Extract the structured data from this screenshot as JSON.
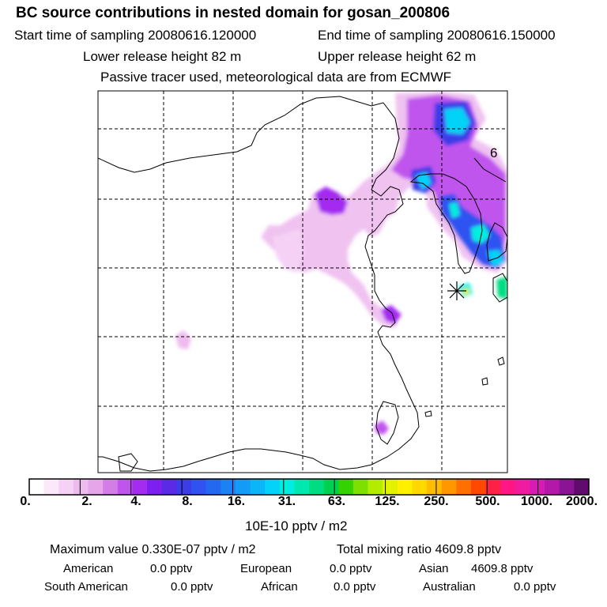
{
  "header": {
    "title": "BC  source contributions in nested domain for gosan_200806",
    "start_label": "Start time of sampling 20080616.120000",
    "end_label": "End time of sampling 20080616.150000",
    "lower_label": "Lower release height   82 m",
    "upper_label": "Upper release height   62 m",
    "tracer_note": "Passive tracer used, meteorological data are from ECMWF"
  },
  "map": {
    "label_6": "6",
    "receptor_name": "gosan"
  },
  "colorbar": {
    "colors": [
      "#ffffff",
      "#fbe8fb",
      "#f5d2f5",
      "#eebbee",
      "#e5a5e8",
      "#d47de6",
      "#c055ee",
      "#a42cf0",
      "#7d1ff0",
      "#5a2ae6",
      "#3c3ce8",
      "#2f52f0",
      "#2468f2",
      "#1a82f5",
      "#129cf7",
      "#0ab6f8",
      "#04d2f8",
      "#00eee0",
      "#00e8b0",
      "#00dc82",
      "#00d050",
      "#34d200",
      "#7ee000",
      "#b4ec00",
      "#e2f200",
      "#fff000",
      "#ffd800",
      "#ffbc00",
      "#ff9800",
      "#ff7000",
      "#ff4800",
      "#ff2048",
      "#ff1884",
      "#f01ca0",
      "#d61cb4",
      "#b418a8",
      "#8a1494",
      "#600c6c"
    ],
    "labels": [
      "0.",
      "2.",
      "4.",
      "8.",
      "16.",
      "31.",
      "63.",
      "125.",
      "250.",
      "500.",
      "1000.",
      "2000."
    ],
    "unit": "10E-10 pptv / m2"
  },
  "stats": {
    "max_value": "Maximum value  0.330E-07 pptv / m2",
    "total_mixing": "Total mixing ratio     4609.8 pptv",
    "american_label": "American",
    "american_value": "0.0 pptv",
    "european_label": "European",
    "european_value": "0.0 pptv",
    "asian_label": "Asian",
    "asian_value": "4609.8 pptv",
    "south_american_label": "South American",
    "south_american_value": "0.0 pptv",
    "african_label": "African",
    "african_value": "0.0 pptv",
    "australian_label": "Australian",
    "australian_value": "0.0 pptv"
  }
}
